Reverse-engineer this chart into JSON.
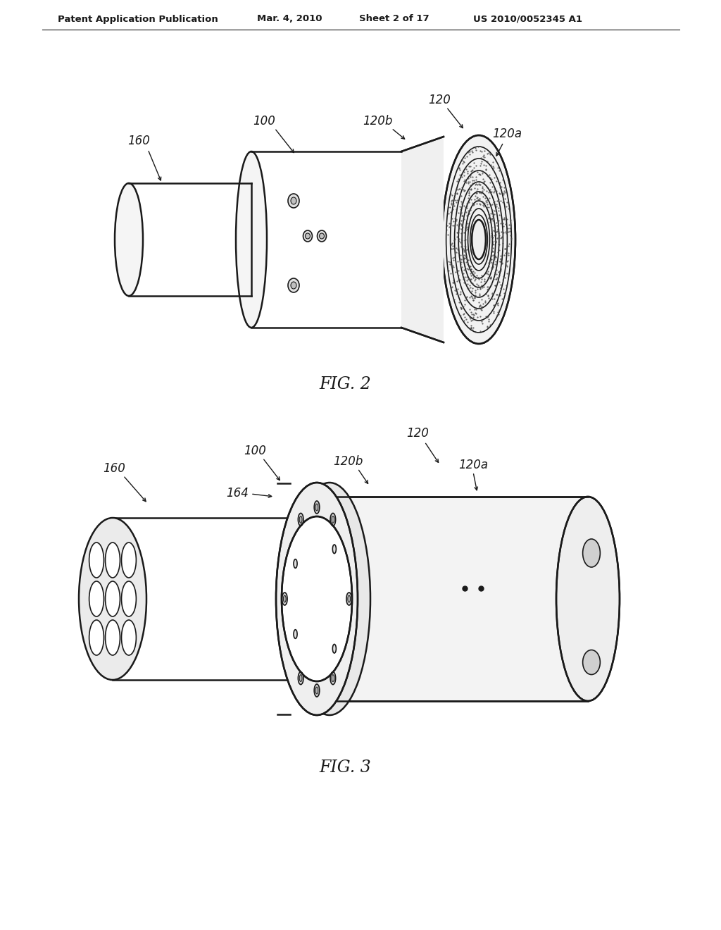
{
  "bg_color": "#ffffff",
  "line_color": "#1a1a1a",
  "header_text": "Patent Application Publication",
  "header_date": "Mar. 4, 2010",
  "header_sheet": "Sheet 2 of 17",
  "header_patent": "US 2010/0052345 A1",
  "fig2_label": "FIG. 2",
  "fig3_label": "FIG. 3"
}
